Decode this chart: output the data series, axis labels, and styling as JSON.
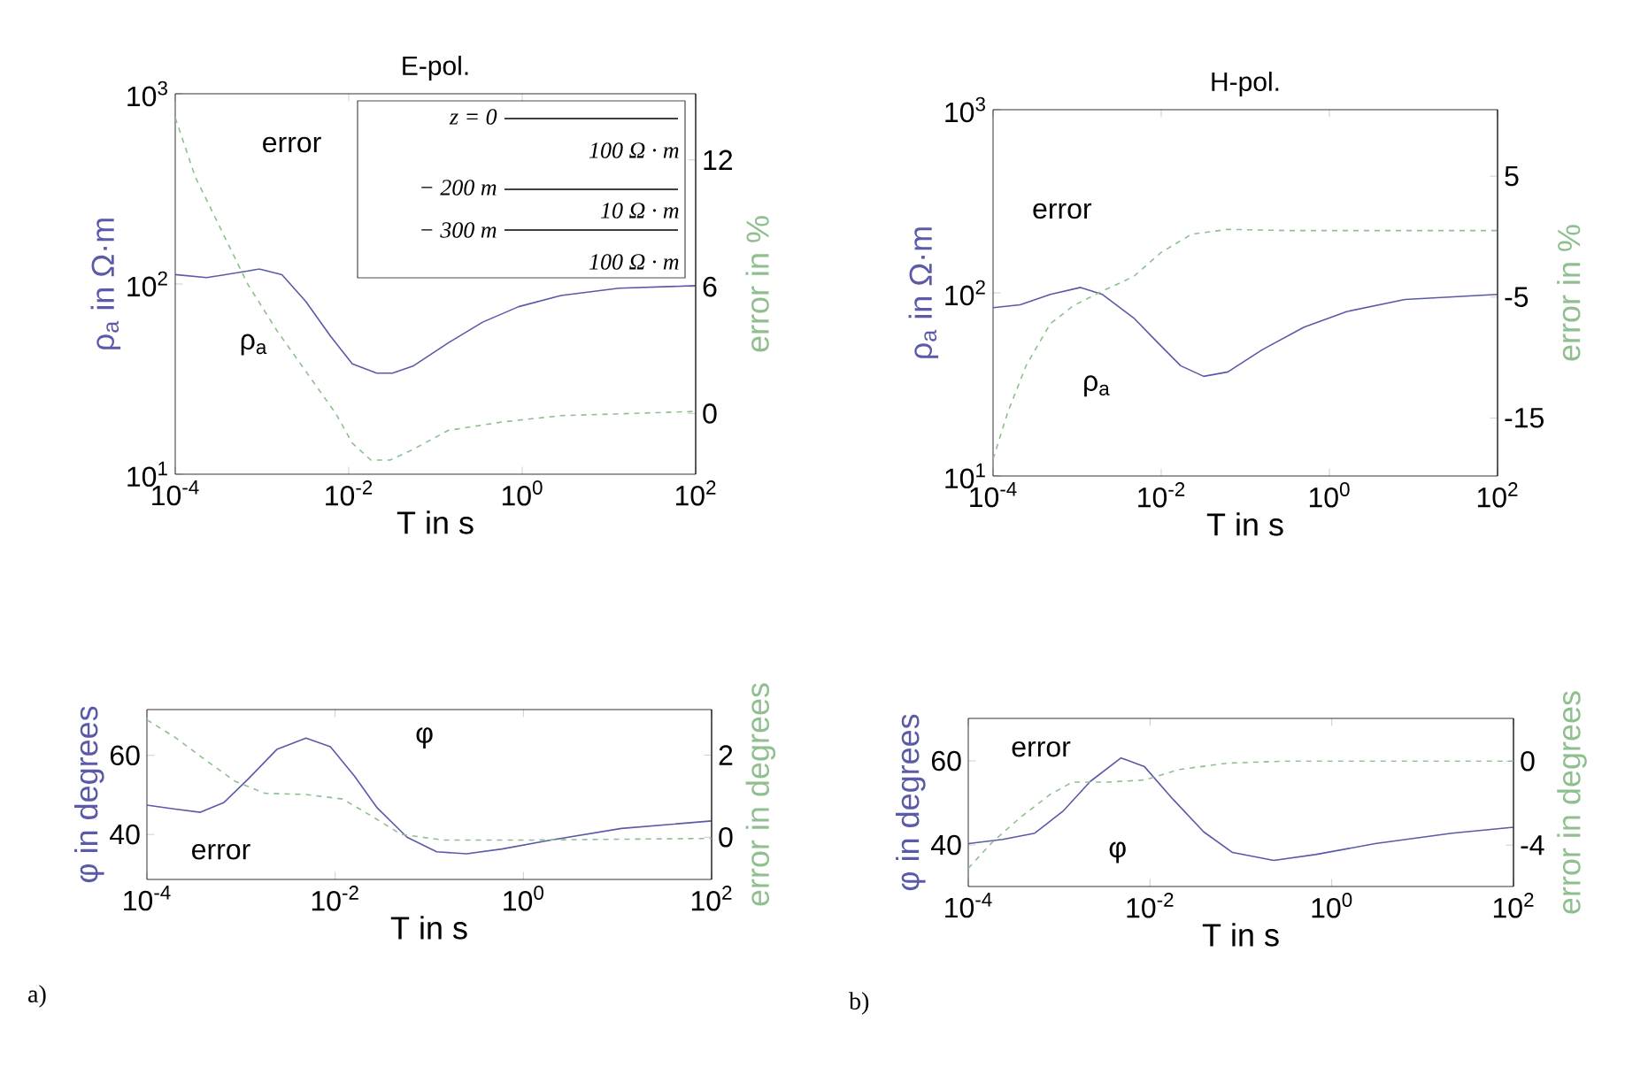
{
  "chart_data": [
    {
      "type": "line",
      "title": "E-pol.",
      "xlabel": "T in s",
      "ylabel": "ρ$_{a}$ in Ω·m",
      "y2label": "error in %",
      "log": "xy",
      "grid": false,
      "marker": "none",
      "xlim": [
        0.0001,
        100
      ],
      "xticks": [
        {
          "value": 0.0001,
          "label": "10$^{-4}$"
        },
        {
          "value": 0.01,
          "label": "10$^{-2}$"
        },
        {
          "value": 1,
          "label": "10$^{0}$"
        },
        {
          "value": 100,
          "label": "10$^{2}$"
        }
      ],
      "ylim": [
        10,
        1000
      ],
      "yticks": [
        {
          "value": 10,
          "label": "10$^{1}$"
        },
        {
          "value": 100,
          "label": "10$^{2}$"
        },
        {
          "value": 1000,
          "label": "10$^{3}$"
        }
      ],
      "y2lim": [
        -2.87,
        15.13
      ],
      "y2ticks": [
        0,
        6,
        12
      ],
      "series": [
        {
          "color": "#5a5aa8",
          "line_style": "solid",
          "x": [
            0.0001,
            0.00023,
            0.00069,
            0.00093,
            0.0017,
            0.0032,
            0.0062,
            0.011,
            0.021,
            0.032,
            0.055,
            0.14,
            0.35,
            0.91,
            2.8,
            13,
            100
          ],
          "values": [
            112,
            108,
            117,
            120,
            112,
            81,
            53,
            38,
            34,
            34,
            37,
            49,
            63,
            76,
            87,
            95,
            98
          ]
        },
        {
          "color": "#8fbf8f",
          "line_style": "dashed",
          "axis": "y2",
          "x": [
            0.0001,
            0.00017,
            0.00032,
            0.00069,
            0.0015,
            0.0032,
            0.0071,
            0.011,
            0.018,
            0.03,
            0.055,
            0.14,
            0.58,
            2.8,
            100
          ],
          "values": [
            14.0,
            11.2,
            8.9,
            6.1,
            3.9,
            2.0,
            0,
            -1.4,
            -2.2,
            -2.2,
            -1.7,
            -0.8,
            -0.4,
            -0.1,
            0.1
          ]
        }
      ],
      "annotations": [
        "z = 0",
        "100 Ω · m",
        "− 200 m",
        "10 Ω · m",
        "− 300 m",
        "100 Ω · m",
        "error",
        "ρ$_{a}$"
      ]
    },
    {
      "type": "line",
      "title": "H-pol.",
      "xlabel": "T in s",
      "ylabel": "ρ$_{a}$ in Ω·m",
      "y2label": "error in %",
      "log": "xy",
      "grid": false,
      "marker": "none",
      "xlim": [
        0.0001,
        100
      ],
      "xticks": [
        {
          "value": 0.0001,
          "label": "10$^{-4}$"
        },
        {
          "value": 0.01,
          "label": "10$^{-2}$"
        },
        {
          "value": 1,
          "label": "10$^{0}$"
        },
        {
          "value": 100,
          "label": "10$^{2}$"
        }
      ],
      "ylim": [
        10,
        1000
      ],
      "yticks": [
        {
          "value": 10,
          "label": "10$^{1}$"
        },
        {
          "value": 100,
          "label": "10$^{2}$"
        },
        {
          "value": 1000,
          "label": "10$^{3}$"
        }
      ],
      "y2lim": [
        -19.8,
        10.5
      ],
      "y2ticks": [
        -15,
        -5,
        5
      ],
      "series": [
        {
          "color": "#5a5aa8",
          "line_style": "solid",
          "x": [
            0.0001,
            0.00021,
            0.00048,
            0.0011,
            0.002,
            0.0047,
            0.0089,
            0.017,
            0.032,
            0.062,
            0.16,
            0.5,
            1.6,
            7.9,
            100
          ],
          "values": [
            83,
            86,
            98,
            107,
            98,
            73,
            54,
            40,
            35,
            37,
            49,
            65,
            79,
            92,
            98
          ]
        },
        {
          "color": "#8fbf8f",
          "line_style": "dashed",
          "axis": "y2",
          "x": [
            0.0001,
            0.00015,
            0.00025,
            0.00048,
            0.00091,
            0.002,
            0.0047,
            0.01,
            0.023,
            0.062,
            0.32,
            100
          ],
          "values": [
            -18.4,
            -14.5,
            -10.6,
            -7.2,
            -5.7,
            -4.5,
            -3.3,
            -1.3,
            0.2,
            0.6,
            0.5,
            0.5
          ]
        }
      ],
      "annotations": [
        "error",
        "ρ$_{a}$"
      ]
    },
    {
      "type": "line",
      "xlabel": "T in s",
      "ylabel": "φ in degrees",
      "y2label": "error in degrees",
      "log": "x",
      "grid": false,
      "marker": "none",
      "xlim": [
        0.0001,
        100
      ],
      "xticks": [
        {
          "value": 0.0001,
          "label": "10$^{-4}$"
        },
        {
          "value": 0.01,
          "label": "10$^{-2}$"
        },
        {
          "value": 1,
          "label": "10$^{0}$"
        },
        {
          "value": 100,
          "label": "10$^{2}$"
        }
      ],
      "ylim": [
        28.6,
        71.6
      ],
      "yticks": [
        40,
        60
      ],
      "y2lim": [
        -1.03,
        3.11
      ],
      "y2ticks": [
        0,
        2
      ],
      "series": [
        {
          "color": "#5a5aa8",
          "line_style": "solid",
          "x": [
            0.0001,
            0.0002,
            0.00037,
            0.00066,
            0.0012,
            0.0024,
            0.0049,
            0.0089,
            0.016,
            0.028,
            0.058,
            0.12,
            0.25,
            0.59,
            1.9,
            11,
            100
          ],
          "values": [
            47.4,
            46.4,
            45.6,
            48.1,
            54.1,
            61.5,
            64.4,
            62.2,
            54.8,
            46.7,
            39.3,
            35.6,
            35.1,
            36.3,
            38.5,
            41.5,
            43.4
          ]
        },
        {
          "color": "#8fbf8f",
          "line_style": "dashed",
          "axis": "y2",
          "x": [
            0.0001,
            0.0002,
            0.00043,
            0.00087,
            0.0018,
            0.0049,
            0.012,
            0.025,
            0.05,
            0.14,
            1.2,
            100
          ],
          "values": [
            2.86,
            2.43,
            1.86,
            1.36,
            1.07,
            1.04,
            0.93,
            0.5,
            0.07,
            -0.07,
            -0.07,
            -0.03
          ]
        }
      ],
      "annotations": [
        "a)",
        "error",
        "φ"
      ]
    },
    {
      "type": "line",
      "xlabel": "T in s",
      "ylabel": "φ in degrees",
      "y2label": "error in degrees",
      "log": "x",
      "grid": false,
      "marker": "none",
      "xlim": [
        0.0001,
        100
      ],
      "xticks": [
        {
          "value": 0.0001,
          "label": "10$^{-4}$"
        },
        {
          "value": 0.01,
          "label": "10$^{-2}$"
        },
        {
          "value": 1,
          "label": "10$^{0}$"
        },
        {
          "value": 100,
          "label": "10$^{2}$"
        }
      ],
      "ylim": [
        30.1,
        70.1
      ],
      "yticks": [
        40,
        60
      ],
      "y2lim": [
        -5.97,
        2.03
      ],
      "y2ticks": [
        -4,
        0
      ],
      "series": [
        {
          "color": "#5a5aa8",
          "line_style": "solid",
          "x": [
            0.0001,
            0.00024,
            0.00054,
            0.0011,
            0.0022,
            0.0048,
            0.0087,
            0.018,
            0.039,
            0.081,
            0.23,
            0.66,
            3,
            21,
            100
          ],
          "values": [
            40.3,
            41.3,
            42.8,
            48.0,
            55.1,
            60.7,
            58.6,
            50.8,
            43.1,
            38.2,
            36.3,
            37.7,
            40.3,
            42.8,
            44.2
          ]
        },
        {
          "color": "#8fbf8f",
          "line_style": "dashed",
          "axis": "y2",
          "x": [
            0.0001,
            0.00018,
            0.00037,
            0.00079,
            0.0014,
            0.0035,
            0.0087,
            0.021,
            0.071,
            0.32,
            100
          ],
          "values": [
            -5.1,
            -3.9,
            -2.7,
            -1.6,
            -1.0,
            -1.0,
            -0.9,
            -0.4,
            -0.1,
            0,
            0
          ]
        }
      ],
      "annotations": [
        "b)",
        "error",
        "φ"
      ]
    }
  ]
}
